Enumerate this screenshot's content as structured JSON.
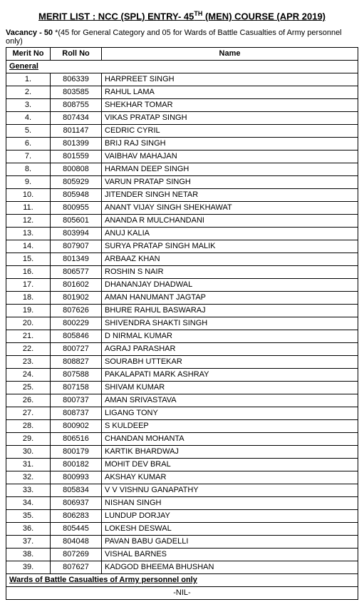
{
  "title_html": "MERIT LIST :  NCC (SPL) ENTRY- 45<sup>TH</sup> (MEN) COURSE  (APR 2019)",
  "vacancy_label": "Vacancy - 50 ",
  "vacancy_note": "*(45 for General Category and 05 for Wards of Battle Casualties of Army personnel only)",
  "headers": {
    "merit": "Merit No",
    "roll": "Roll No",
    "name": "Name"
  },
  "section_general": "General",
  "section_wards": "Wards of Battle Casualties of Army personnel only",
  "nil_text": "-NIL-",
  "rows": [
    {
      "merit": "1.",
      "roll": "806339",
      "name": "HARPREET SINGH"
    },
    {
      "merit": "2.",
      "roll": "803585",
      "name": "RAHUL LAMA"
    },
    {
      "merit": "3.",
      "roll": "808755",
      "name": "SHEKHAR TOMAR"
    },
    {
      "merit": "4.",
      "roll": "807434",
      "name": "VIKAS PRATAP SINGH"
    },
    {
      "merit": "5.",
      "roll": "801147",
      "name": "CEDRIC CYRIL"
    },
    {
      "merit": "6.",
      "roll": "801399",
      "name": "BRIJ RAJ SINGH"
    },
    {
      "merit": "7.",
      "roll": "801559",
      "name": "VAIBHAV MAHAJAN"
    },
    {
      "merit": "8.",
      "roll": "800808",
      "name": "HARMAN DEEP SINGH"
    },
    {
      "merit": "9.",
      "roll": "805929",
      "name": "VARUN PRATAP SINGH"
    },
    {
      "merit": "10.",
      "roll": "805948",
      "name": "JITENDER SINGH NETAR"
    },
    {
      "merit": "11.",
      "roll": "800955",
      "name": "ANANT VIJAY SINGH SHEKHAWAT"
    },
    {
      "merit": "12.",
      "roll": "805601",
      "name": "ANANDA R MULCHANDANI"
    },
    {
      "merit": "13.",
      "roll": "803994",
      "name": "ANUJ KALIA"
    },
    {
      "merit": "14.",
      "roll": "807907",
      "name": "SURYA PRATAP SINGH MALIK"
    },
    {
      "merit": "15.",
      "roll": "801349",
      "name": "ARBAAZ KHAN"
    },
    {
      "merit": "16.",
      "roll": "806577",
      "name": "ROSHIN S NAIR"
    },
    {
      "merit": "17.",
      "roll": "801602",
      "name": "DHANANJAY DHADWAL"
    },
    {
      "merit": "18.",
      "roll": "801902",
      "name": "AMAN HANUMANT JAGTAP"
    },
    {
      "merit": "19.",
      "roll": "807626",
      "name": "BHURE RAHUL BASWARAJ"
    },
    {
      "merit": "20.",
      "roll": "800229",
      "name": "SHIVENDRA SHAKTI SINGH"
    },
    {
      "merit": "21.",
      "roll": "805846",
      "name": "D NIRMAL KUMAR"
    },
    {
      "merit": "22.",
      "roll": "800727",
      "name": "AGRAJ PARASHAR"
    },
    {
      "merit": "23.",
      "roll": "808827",
      "name": "SOURABH UTTEKAR"
    },
    {
      "merit": "24.",
      "roll": "807588",
      "name": "PAKALAPATI MARK ASHRAY"
    },
    {
      "merit": "25.",
      "roll": "807158",
      "name": "SHIVAM KUMAR"
    },
    {
      "merit": "26.",
      "roll": "800737",
      "name": "AMAN SRIVASTAVA"
    },
    {
      "merit": "27.",
      "roll": "808737",
      "name": "LIGANG TONY"
    },
    {
      "merit": "28.",
      "roll": "800902",
      "name": "S KULDEEP"
    },
    {
      "merit": "29.",
      "roll": "806516",
      "name": "CHANDAN MOHANTA"
    },
    {
      "merit": "30.",
      "roll": "800179",
      "name": "KARTIK BHARDWAJ"
    },
    {
      "merit": "31.",
      "roll": "800182",
      "name": "MOHIT DEV BRAL"
    },
    {
      "merit": "32.",
      "roll": "800993",
      "name": "AKSHAY KUMAR"
    },
    {
      "merit": "33.",
      "roll": "805834",
      "name": "V V VISHNU GANAPATHY"
    },
    {
      "merit": "34.",
      "roll": "806937",
      "name": "NISHAN SINGH"
    },
    {
      "merit": "35.",
      "roll": "806283",
      "name": "LUNDUP DORJAY"
    },
    {
      "merit": "36.",
      "roll": "805445",
      "name": "LOKESH DESWAL"
    },
    {
      "merit": "37.",
      "roll": "804048",
      "name": "PAVAN BABU GADELLI"
    },
    {
      "merit": "38.",
      "roll": "807269",
      "name": "VISHAL BARNES"
    },
    {
      "merit": "39.",
      "roll": "807627",
      "name": "KADGOD BHEEMA BHUSHAN"
    }
  ]
}
